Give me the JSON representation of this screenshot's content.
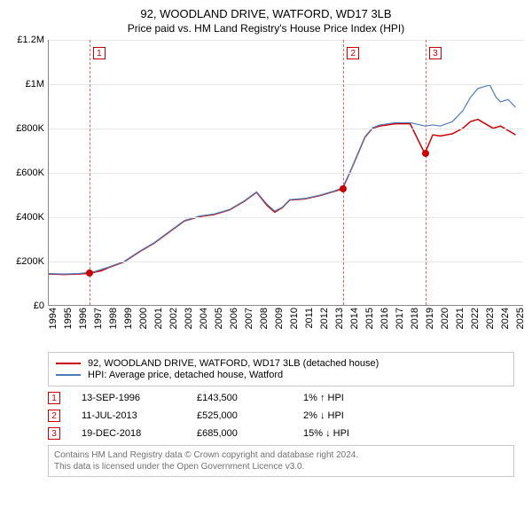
{
  "title": "92, WOODLAND DRIVE, WATFORD, WD17 3LB",
  "subtitle": "Price paid vs. HM Land Registry's House Price Index (HPI)",
  "chart": {
    "type": "line",
    "background_color": "#ffffff",
    "grid_color": "#e6e6e6",
    "axis_color": "#888888",
    "xlim": [
      1994,
      2025.5
    ],
    "ylim": [
      0,
      1200000
    ],
    "yticks": [
      0,
      200000,
      400000,
      600000,
      800000,
      1000000,
      1200000
    ],
    "ytick_labels": [
      "£0",
      "£200K",
      "£400K",
      "£600K",
      "£800K",
      "£1M",
      "£1.2M"
    ],
    "xticks": [
      1994,
      1995,
      1996,
      1997,
      1998,
      1999,
      2000,
      2001,
      2002,
      2003,
      2004,
      2005,
      2006,
      2007,
      2008,
      2009,
      2010,
      2011,
      2012,
      2013,
      2014,
      2015,
      2016,
      2017,
      2018,
      2019,
      2020,
      2021,
      2022,
      2023,
      2024,
      2025
    ],
    "label_fontsize": 11,
    "series": [
      {
        "id": "property",
        "label": "92, WOODLAND DRIVE, WATFORD, WD17 3LB (detached house)",
        "color": "#cc0000",
        "line_width": 1.5,
        "data": [
          [
            1994.0,
            140000
          ],
          [
            1995.0,
            138000
          ],
          [
            1996.0,
            140000
          ],
          [
            1996.7,
            143500
          ],
          [
            1997.5,
            155000
          ],
          [
            1998.0,
            170000
          ],
          [
            1999.0,
            195000
          ],
          [
            2000.0,
            240000
          ],
          [
            2001.0,
            280000
          ],
          [
            2002.0,
            330000
          ],
          [
            2003.0,
            380000
          ],
          [
            2004.0,
            400000
          ],
          [
            2005.0,
            410000
          ],
          [
            2006.0,
            430000
          ],
          [
            2007.0,
            470000
          ],
          [
            2007.8,
            510000
          ],
          [
            2008.5,
            450000
          ],
          [
            2009.0,
            420000
          ],
          [
            2009.5,
            440000
          ],
          [
            2010.0,
            475000
          ],
          [
            2011.0,
            480000
          ],
          [
            2012.0,
            495000
          ],
          [
            2013.0,
            515000
          ],
          [
            2013.5,
            525000
          ],
          [
            2014.0,
            600000
          ],
          [
            2014.5,
            680000
          ],
          [
            2015.0,
            760000
          ],
          [
            2015.5,
            800000
          ],
          [
            2016.0,
            810000
          ],
          [
            2017.0,
            820000
          ],
          [
            2018.0,
            820000
          ],
          [
            2018.97,
            685000
          ],
          [
            2019.5,
            770000
          ],
          [
            2020.0,
            765000
          ],
          [
            2020.8,
            775000
          ],
          [
            2021.5,
            800000
          ],
          [
            2022.0,
            830000
          ],
          [
            2022.5,
            840000
          ],
          [
            2023.0,
            820000
          ],
          [
            2023.5,
            800000
          ],
          [
            2024.0,
            810000
          ],
          [
            2024.5,
            790000
          ],
          [
            2025.0,
            770000
          ]
        ]
      },
      {
        "id": "hpi",
        "label": "HPI: Average price, detached house, Watford",
        "color": "#4a7ebb",
        "line_width": 1.2,
        "data": [
          [
            1994.0,
            142000
          ],
          [
            1995.0,
            140000
          ],
          [
            1996.0,
            142000
          ],
          [
            1997.0,
            150000
          ],
          [
            1998.0,
            172000
          ],
          [
            1999.0,
            197000
          ],
          [
            2000.0,
            242000
          ],
          [
            2001.0,
            282000
          ],
          [
            2002.0,
            332000
          ],
          [
            2003.0,
            382000
          ],
          [
            2004.0,
            402000
          ],
          [
            2005.0,
            412000
          ],
          [
            2006.0,
            432000
          ],
          [
            2007.0,
            472000
          ],
          [
            2007.8,
            512000
          ],
          [
            2008.5,
            455000
          ],
          [
            2009.0,
            425000
          ],
          [
            2009.5,
            442000
          ],
          [
            2010.0,
            477000
          ],
          [
            2011.0,
            482000
          ],
          [
            2012.0,
            497000
          ],
          [
            2013.0,
            517000
          ],
          [
            2013.5,
            530000
          ],
          [
            2014.0,
            602000
          ],
          [
            2014.5,
            682000
          ],
          [
            2015.0,
            762000
          ],
          [
            2015.5,
            802000
          ],
          [
            2016.0,
            815000
          ],
          [
            2017.0,
            825000
          ],
          [
            2018.0,
            825000
          ],
          [
            2019.0,
            810000
          ],
          [
            2019.5,
            815000
          ],
          [
            2020.0,
            810000
          ],
          [
            2020.8,
            830000
          ],
          [
            2021.5,
            880000
          ],
          [
            2022.0,
            940000
          ],
          [
            2022.5,
            980000
          ],
          [
            2023.0,
            990000
          ],
          [
            2023.3,
            995000
          ],
          [
            2023.7,
            940000
          ],
          [
            2024.0,
            920000
          ],
          [
            2024.5,
            930000
          ],
          [
            2025.0,
            895000
          ]
        ]
      }
    ],
    "events": [
      {
        "n": "1",
        "x": 1996.7,
        "date": "13-SEP-1996",
        "price": 143500,
        "price_label": "£143,500",
        "diff": "1% ↑ HPI"
      },
      {
        "n": "2",
        "x": 2013.53,
        "date": "11-JUL-2013",
        "price": 525000,
        "price_label": "£525,000",
        "diff": "2% ↓ HPI"
      },
      {
        "n": "3",
        "x": 2018.97,
        "date": "19-DEC-2018",
        "price": 685000,
        "price_label": "£685,000",
        "diff": "15% ↓ HPI"
      }
    ],
    "event_line_color": "#e06666",
    "event_box_border": "#cc0000",
    "point_color": "#cc0000"
  },
  "legend": {
    "border_color": "#c8c8c8"
  },
  "footer": {
    "line1": "Contains HM Land Registry data © Crown copyright and database right 2024.",
    "line2": "This data is licensed under the Open Government Licence v3.0.",
    "text_color": "#707070"
  }
}
